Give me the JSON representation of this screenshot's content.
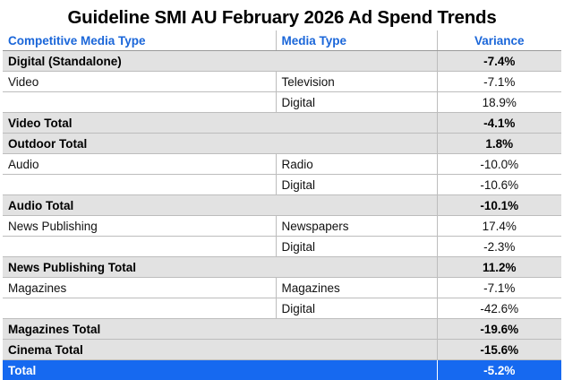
{
  "chart_data": {
    "type": "table",
    "title": "Guideline SMI AU February 2026 Ad Spend Trends",
    "columns": [
      "Competitive Media Type",
      "Media Type",
      "Variance"
    ],
    "rows": [
      {
        "kind": "subtotal",
        "cells": [
          "Digital (Standalone)",
          "",
          "-7.4%"
        ]
      },
      {
        "kind": "detail",
        "cells": [
          "Video",
          "Television",
          "-7.1%"
        ]
      },
      {
        "kind": "detail",
        "cells": [
          "",
          "Digital",
          "18.9%"
        ]
      },
      {
        "kind": "subtotal",
        "cells": [
          "Video Total",
          "",
          "-4.1%"
        ]
      },
      {
        "kind": "subtotal",
        "cells": [
          "Outdoor Total",
          "",
          "1.8%"
        ]
      },
      {
        "kind": "detail",
        "cells": [
          "Audio",
          "Radio",
          "-10.0%"
        ]
      },
      {
        "kind": "detail",
        "cells": [
          "",
          "Digital",
          "-10.6%"
        ]
      },
      {
        "kind": "subtotal",
        "cells": [
          "Audio Total",
          "",
          "-10.1%"
        ]
      },
      {
        "kind": "detail",
        "cells": [
          "News Publishing",
          "Newspapers",
          "17.4%"
        ]
      },
      {
        "kind": "detail",
        "cells": [
          "",
          "Digital",
          "-2.3%"
        ]
      },
      {
        "kind": "subtotal",
        "cells": [
          "News Publishing Total",
          "",
          "11.2%"
        ]
      },
      {
        "kind": "detail",
        "cells": [
          "Magazines",
          "Magazines",
          "-7.1%"
        ]
      },
      {
        "kind": "detail",
        "cells": [
          "",
          "Digital",
          "-42.6%"
        ]
      },
      {
        "kind": "subtotal",
        "cells": [
          "Magazines Total",
          "",
          "-19.6%"
        ]
      },
      {
        "kind": "subtotal",
        "cells": [
          "Cinema Total",
          "",
          "-15.6%"
        ]
      },
      {
        "kind": "total",
        "cells": [
          "Total",
          "",
          "-5.2%"
        ]
      }
    ],
    "colors": {
      "header_text": "#1a66d9",
      "subtotal_bg": "#e2e2e2",
      "total_bg": "#1669f0",
      "total_text": "#ffffff"
    }
  }
}
